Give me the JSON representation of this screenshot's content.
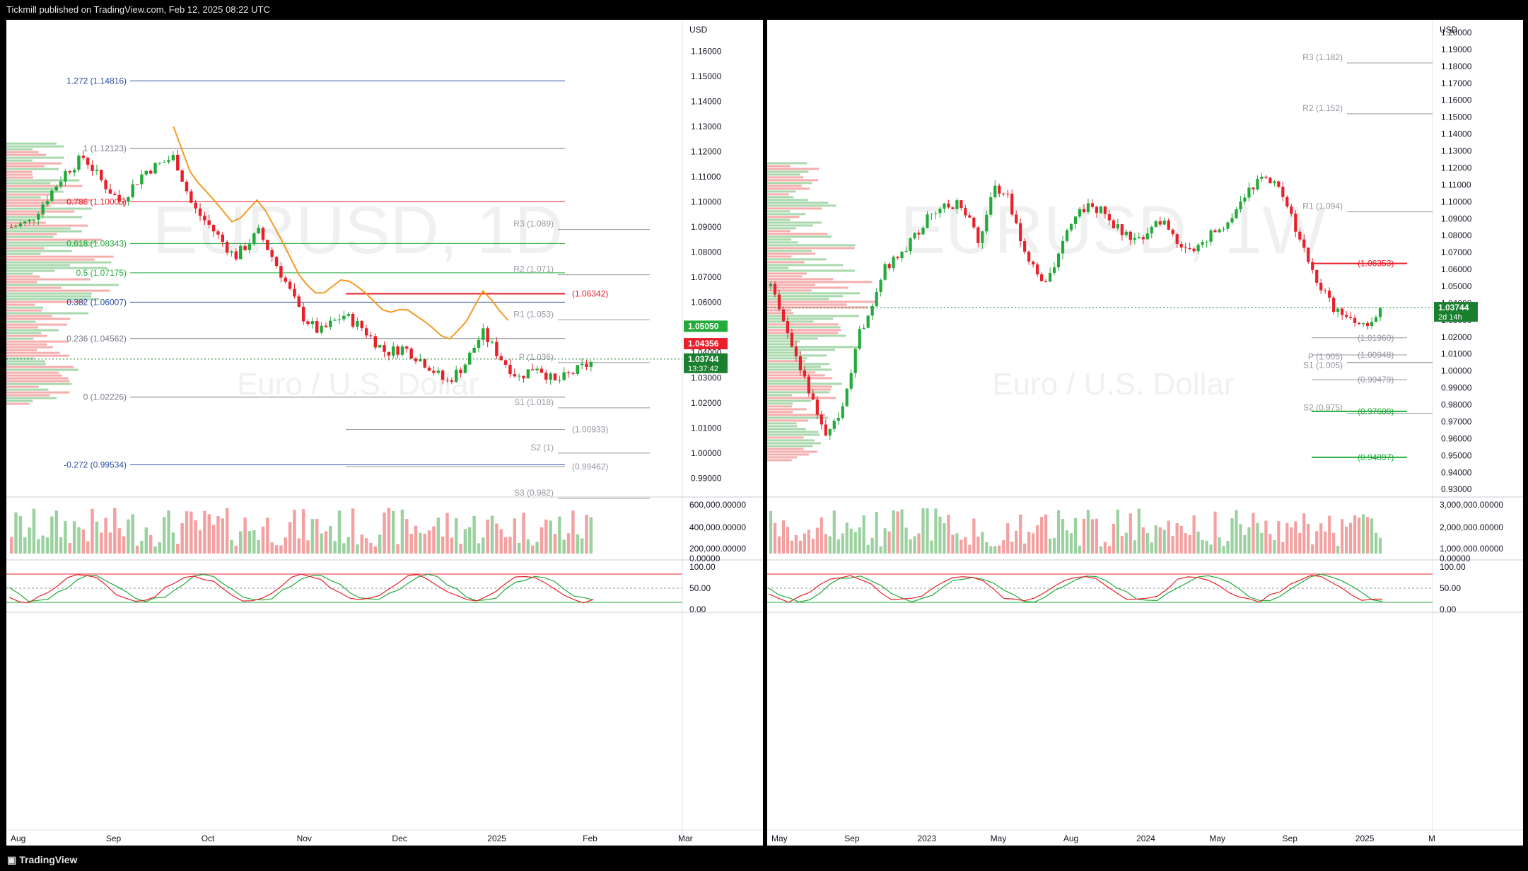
{
  "header": {
    "publisher_line": "Tickmill published on TradingView.com, Feb 12, 2025 08:22 UTC"
  },
  "footer": {
    "brand": "TradingView"
  },
  "colors": {
    "up": "#22ab3a",
    "down": "#e8202a",
    "up_soft": "#9ad19f",
    "down_soft": "#f3a0a0",
    "fib_blue": "#2a4fa8",
    "ma_orange": "#f59a23"
  },
  "chart_data": [
    {
      "type": "candlestick",
      "timeframe": "1D",
      "watermark": {
        "symbol": "EURUSD, 1D",
        "name": "Euro / U.S. Dollar"
      },
      "currency": "USD",
      "y_ticks": [
        "1.16000",
        "1.15000",
        "1.14000",
        "1.13000",
        "1.12000",
        "1.11000",
        "1.10000",
        "1.09000",
        "1.08000",
        "1.07000",
        "1.06000",
        "1.05000",
        "1.04000",
        "1.03000",
        "1.02000",
        "1.01000",
        "1.00000",
        "0.99000"
      ],
      "ylim": [
        0.9825,
        1.1725
      ],
      "x_labels": [
        "Aug",
        "Sep",
        "Oct",
        "Nov",
        "Dec",
        "2025",
        "Feb",
        "Mar"
      ],
      "fib_levels": [
        {
          "label": "1.272 (1.14816)",
          "value": 1.14816,
          "color": "#2a4fa8"
        },
        {
          "label": "1 (1.12123)",
          "value": 1.12123,
          "color": "#787b86"
        },
        {
          "label": "0.786 (1.10005)",
          "value": 1.10005,
          "color": "#e8202a"
        },
        {
          "label": "0.618 (1.08343)",
          "value": 1.08343,
          "color": "#22ab3a"
        },
        {
          "label": "0.5 (1.07175)",
          "value": 1.07175,
          "color": "#22ab3a"
        },
        {
          "label": "0.382 (1.06007)",
          "value": 1.06007,
          "color": "#2a4fa8"
        },
        {
          "label": "0.236 (1.04562)",
          "value": 1.04562,
          "color": "#787b86"
        },
        {
          "label": "0 (1.02226)",
          "value": 1.02226,
          "color": "#787b86"
        },
        {
          "label": "-0.272 (0.99534)",
          "value": 0.99534,
          "color": "#2a4fa8"
        }
      ],
      "pivots": [
        {
          "label": "R3 (1.089)",
          "value": 1.089
        },
        {
          "label": "R2 (1.071)",
          "value": 1.071
        },
        {
          "label": "R1 (1.053)",
          "value": 1.053
        },
        {
          "label": "P (1.036)",
          "value": 1.036
        },
        {
          "label": "S1 (1.018)",
          "value": 1.018
        },
        {
          "label": "S2 (1)",
          "value": 1.0
        },
        {
          "label": "S3 (0.982)",
          "value": 0.982
        }
      ],
      "extra_levels": [
        {
          "label": "(1.06342)",
          "value": 1.06342,
          "color": "#e8202a"
        },
        {
          "label": "(1.00933)",
          "value": 1.00933,
          "color": "#9598a1"
        },
        {
          "label": "(0.99462)",
          "value": 0.99462,
          "color": "#9598a1"
        }
      ],
      "price_tags": [
        {
          "label": "1.05050",
          "value": 1.0505,
          "color": "#22ab3a"
        },
        {
          "label": "1.04356",
          "value": 1.04356,
          "color": "#e8202a"
        },
        {
          "label": "1.03744",
          "value": 1.03744,
          "color": "#1a7f2e"
        }
      ],
      "countdown": "13:37:42",
      "price_path": [
        [
          0,
          1.09
        ],
        [
          0.03,
          1.092
        ],
        [
          0.06,
          1.102
        ],
        [
          0.09,
          1.112
        ],
        [
          0.12,
          1.118
        ],
        [
          0.15,
          1.108
        ],
        [
          0.18,
          1.1
        ],
        [
          0.22,
          1.112
        ],
        [
          0.27,
          1.118
        ],
        [
          0.3,
          1.098
        ],
        [
          0.33,
          1.09
        ],
        [
          0.37,
          1.078
        ],
        [
          0.41,
          1.088
        ],
        [
          0.45,
          1.07
        ],
        [
          0.48,
          1.055
        ],
        [
          0.51,
          1.048
        ],
        [
          0.55,
          1.055
        ],
        [
          0.58,
          1.05
        ],
        [
          0.62,
          1.04
        ],
        [
          0.65,
          1.042
        ],
        [
          0.69,
          1.035
        ],
        [
          0.72,
          1.028
        ],
        [
          0.75,
          1.035
        ],
        [
          0.78,
          1.048
        ],
        [
          0.81,
          1.038
        ],
        [
          0.84,
          1.03
        ],
        [
          0.87,
          1.035
        ],
        [
          0.9,
          1.028
        ],
        [
          0.93,
          1.032
        ],
        [
          0.96,
          1.036
        ]
      ],
      "volume_axis": [
        "600,000.00000",
        "400,000.00000",
        "200,000.00000",
        "0.00000"
      ],
      "osc_axis": [
        "100.00",
        "50.00",
        "0.00"
      ]
    },
    {
      "type": "candlestick",
      "timeframe": "1W",
      "watermark": {
        "symbol": "EURUSD, 1W",
        "name": "Euro / U.S. Dollar"
      },
      "currency": "USD",
      "y_ticks": [
        "1.20000",
        "1.19000",
        "1.18000",
        "1.17000",
        "1.16000",
        "1.15000",
        "1.14000",
        "1.13000",
        "1.12000",
        "1.11000",
        "1.10000",
        "1.09000",
        "1.08000",
        "1.07000",
        "1.06000",
        "1.05000",
        "1.04000",
        "1.03000",
        "1.02000",
        "1.01000",
        "1.00000",
        "0.99000",
        "0.98000",
        "0.97000",
        "0.96000",
        "0.95000",
        "0.94000",
        "0.93000"
      ],
      "ylim": [
        0.9255,
        1.2075
      ],
      "x_labels": [
        "May",
        "Sep",
        "2023",
        "May",
        "Aug",
        "2024",
        "May",
        "Sep",
        "2025",
        "M"
      ],
      "pivots": [
        {
          "label": "R3 (1.182)",
          "value": 1.182
        },
        {
          "label": "R2 (1.152)",
          "value": 1.152
        },
        {
          "label": "R1 (1.094)",
          "value": 1.094
        },
        {
          "label": "P (1.005)",
          "value": 1.005
        },
        {
          "label": "S1 (1.005)",
          "value": 1.005
        },
        {
          "label": "S2 (0.975)",
          "value": 0.975
        }
      ],
      "extra_levels": [
        {
          "label": "(1.06353)",
          "value": 1.06353,
          "color": "#e8202a"
        },
        {
          "label": "(1.01960)",
          "value": 1.0196,
          "color": "#9598a1"
        },
        {
          "label": "(1.00948)",
          "value": 1.00948,
          "color": "#9598a1"
        },
        {
          "label": "(0.99479)",
          "value": 0.99479,
          "color": "#9598a1"
        },
        {
          "label": "(0.97608)",
          "value": 0.97608,
          "color": "#22ab3a"
        },
        {
          "label": "(0.94897)",
          "value": 0.94897,
          "color": "#22ab3a"
        }
      ],
      "price_tags": [
        {
          "label": "1.03744",
          "value": 1.03744,
          "color": "#1a7f2e"
        }
      ],
      "countdown": "2d 14h",
      "price_path": [
        [
          0,
          1.05
        ],
        [
          0.03,
          1.02
        ],
        [
          0.06,
          0.99
        ],
        [
          0.09,
          0.96
        ],
        [
          0.11,
          0.975
        ],
        [
          0.14,
          1.02
        ],
        [
          0.18,
          1.06
        ],
        [
          0.22,
          1.075
        ],
        [
          0.26,
          1.095
        ],
        [
          0.3,
          1.1
        ],
        [
          0.33,
          1.078
        ],
        [
          0.36,
          1.11
        ],
        [
          0.38,
          1.1
        ],
        [
          0.41,
          1.065
        ],
        [
          0.44,
          1.05
        ],
        [
          0.48,
          1.09
        ],
        [
          0.51,
          1.1
        ],
        [
          0.55,
          1.085
        ],
        [
          0.58,
          1.075
        ],
        [
          0.62,
          1.09
        ],
        [
          0.66,
          1.07
        ],
        [
          0.7,
          1.08
        ],
        [
          0.73,
          1.09
        ],
        [
          0.77,
          1.11
        ],
        [
          0.8,
          1.115
        ],
        [
          0.83,
          1.09
        ],
        [
          0.86,
          1.06
        ],
        [
          0.89,
          1.04
        ],
        [
          0.92,
          1.03
        ],
        [
          0.95,
          1.025
        ],
        [
          0.97,
          1.035
        ]
      ],
      "volume_axis": [
        "3,000,000.00000",
        "2,000,000.00000",
        "1,000,000.00000",
        "0.00000"
      ],
      "osc_axis": [
        "100.00",
        "50.00",
        "0.00"
      ]
    }
  ]
}
